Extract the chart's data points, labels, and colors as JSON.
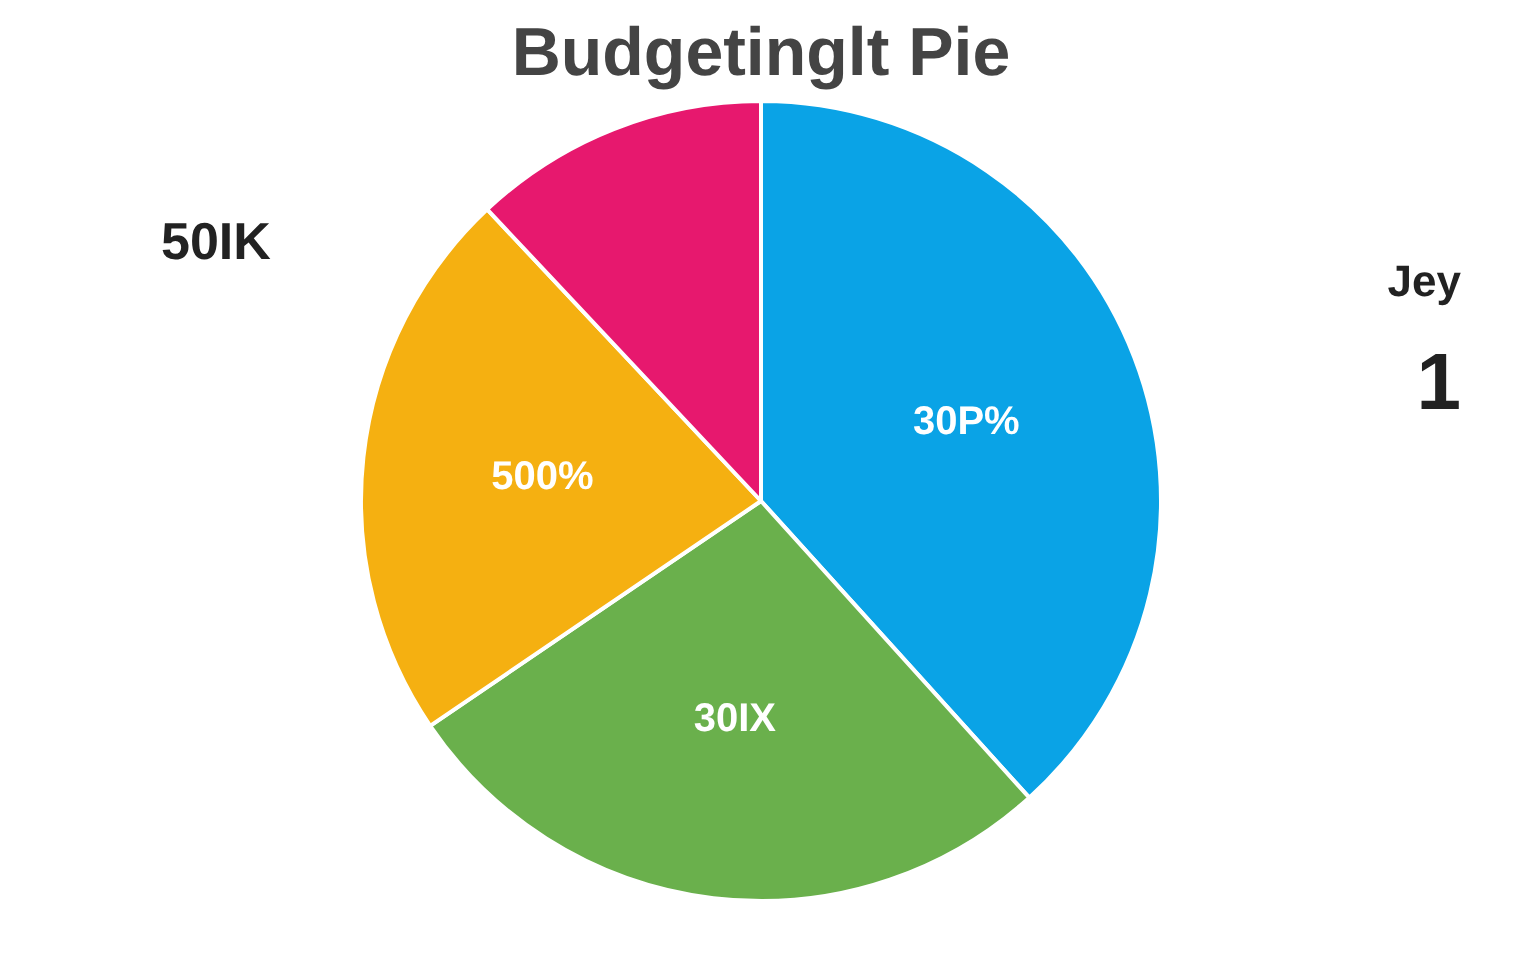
{
  "chart_data": {
    "type": "pie",
    "title": "Budgetinglt Pie",
    "categories": [
      null,
      null,
      null,
      null
    ],
    "values": [
      38.3,
      27.2,
      22.5,
      12.0
    ],
    "colors": [
      "#0aa3e6",
      "#6ab04c",
      "#f5b011",
      "#e7186e"
    ],
    "annotations": [
      "50IK",
      "Jey",
      "1",
      "30P%",
      "30IX",
      "500%"
    ]
  }
}
